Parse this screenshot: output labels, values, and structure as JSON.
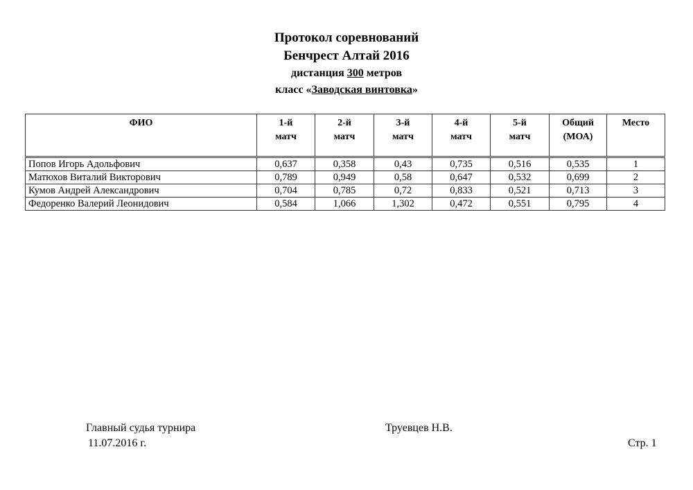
{
  "title": {
    "line1": "Протокол соревнований",
    "line2": "Бенчрест Алтай 2016",
    "line3_prefix": "дистанция ",
    "line3_value": "300",
    "line3_suffix": " метров",
    "line4_prefix": "класс «",
    "line4_value": "Заводская винтовка",
    "line4_suffix": "»"
  },
  "table": {
    "headers": [
      [
        "ФИО",
        ""
      ],
      [
        "1-й",
        "матч"
      ],
      [
        "2-й",
        "матч"
      ],
      [
        "3-й",
        "матч"
      ],
      [
        "4-й",
        "матч"
      ],
      [
        "5-й",
        "матч"
      ],
      [
        "Общий",
        "(МОА)"
      ],
      [
        "Место",
        ""
      ]
    ],
    "rows": [
      [
        "Попов Игорь Адольфович",
        "0,637",
        "0,358",
        "0,43",
        "0,735",
        "0,516",
        "0,535",
        "1"
      ],
      [
        "Матюхов Виталий Викторович",
        "0,789",
        "0,949",
        "0,58",
        "0,647",
        "0,532",
        "0,699",
        "2"
      ],
      [
        "Кумов Андрей Александрович",
        "0,704",
        "0,785",
        "0,72",
        "0,833",
        "0,521",
        "0,713",
        "3"
      ],
      [
        "Федоренко Валерий Леонидович",
        "0,584",
        "1,066",
        "1,302",
        "0,472",
        "0,551",
        "0,795",
        "4"
      ]
    ]
  },
  "footer": {
    "judge_label": "Главный судья турнира",
    "judge_name": "Труевцев Н.В.",
    "date": "11.07.2016 г.",
    "page": "Стр. 1"
  }
}
